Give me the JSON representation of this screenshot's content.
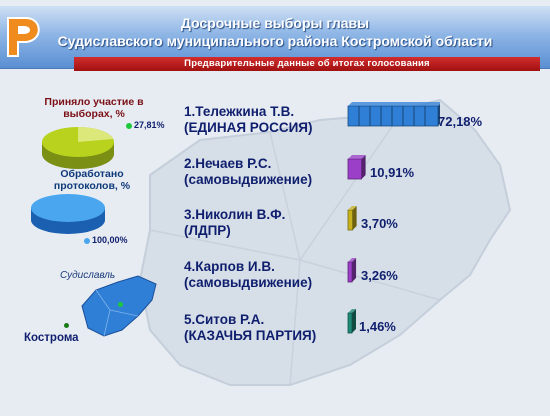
{
  "header": {
    "title_line1": "Досрочные выборы главы",
    "title_line2": "Судиславского муниципального района Костромской области",
    "subtitle": "Предварительные данные об итогах голосования"
  },
  "stats": {
    "turnout_label": "Приняло участие в выборах, %",
    "turnout_value": "27,81%",
    "turnout_fraction": 0.2781,
    "protocols_label": "Обработано протоколов, %",
    "protocols_value": "100,00%",
    "protocols_fraction": 1.0
  },
  "map": {
    "city_sudislavl": "Судиславль",
    "city_kostroma": "Кострома"
  },
  "colors": {
    "accent_blue": "#2f7fd6",
    "header_blue": "#5a8fd3",
    "subbar_red": "#b81c1c",
    "logo_orange": "#f08c1e"
  },
  "chart_data": {
    "type": "bar",
    "orientation": "horizontal",
    "categories": [
      "1.Тележкина Т.В. (ЕДИНАЯ РОССИЯ)",
      "2.Нечаев Р.С. (самовыдвижение)",
      "3.Николин В.Ф. (ЛДПР)",
      "4.Карпов И.В. (самовыдвижение)",
      "5.Ситов Р.А. (КАЗАЧЬЯ ПАРТИЯ)"
    ],
    "candidates": [
      {
        "line1": "1.Тележкина Т.В.",
        "line2": "(ЕДИНАЯ РОССИЯ)",
        "value": 72.18,
        "label": "72,18%",
        "color": "#2f7fd6"
      },
      {
        "line1": "2.Нечаев Р.С.",
        "line2": "(самовыдвижение)",
        "value": 10.91,
        "label": "10,91%",
        "color": "#9b3fc8"
      },
      {
        "line1": "3.Николин В.Ф.",
        "line2": "(ЛДПР)",
        "value": 3.7,
        "label": "3,70%",
        "color": "#c8b21e"
      },
      {
        "line1": "4.Карпов И.В.",
        "line2": "(самовыдвижение)",
        "value": 3.26,
        "label": "3,26%",
        "color": "#9b3fc8"
      },
      {
        "line1": "5.Ситов Р.А.",
        "line2": "(КАЗАЧЬЯ ПАРТИЯ)",
        "value": 1.46,
        "label": "1,46%",
        "color": "#1e8a78"
      }
    ],
    "values": [
      72.18,
      10.91,
      3.7,
      3.26,
      1.46
    ],
    "title": "Досрочные выборы главы Судиславского муниципального района Костромской области",
    "xlim": [
      0,
      72.18
    ],
    "grid": false,
    "legend": "none"
  }
}
